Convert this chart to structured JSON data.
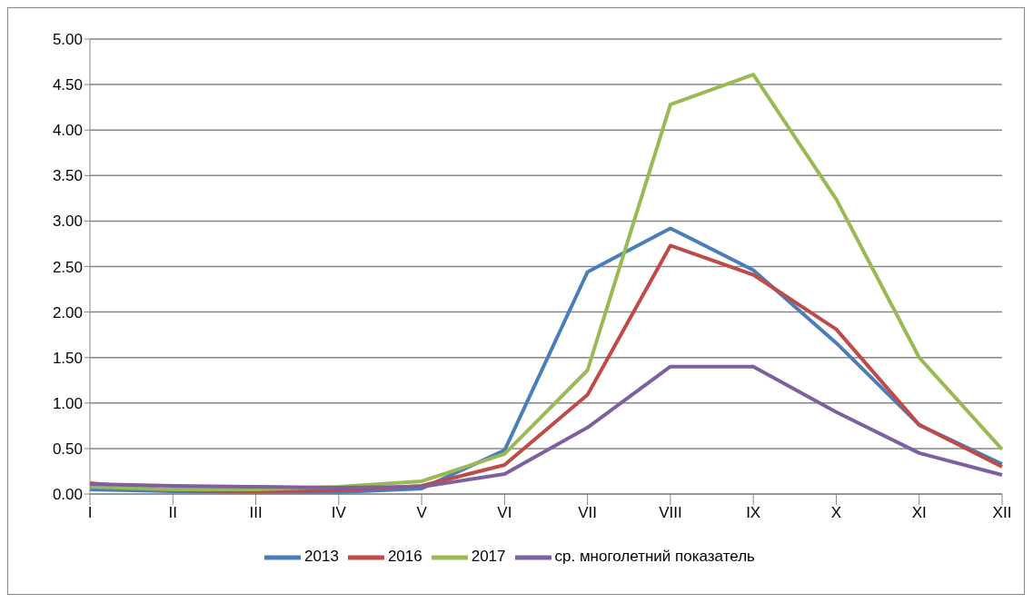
{
  "chart_data": {
    "type": "line",
    "categories": [
      "I",
      "II",
      "III",
      "IV",
      "V",
      "VI",
      "VII",
      "VIII",
      "IX",
      "X",
      "XI",
      "XII"
    ],
    "series": [
      {
        "name": "2013",
        "color": "#4a7ebb",
        "values": [
          0.05,
          0.03,
          0.02,
          0.02,
          0.06,
          0.48,
          2.44,
          2.92,
          2.46,
          1.66,
          0.76,
          0.33
        ]
      },
      {
        "name": "2016",
        "color": "#be4b48",
        "values": [
          0.12,
          0.04,
          0.03,
          0.04,
          0.09,
          0.32,
          1.09,
          2.73,
          2.41,
          1.81,
          0.76,
          0.3
        ]
      },
      {
        "name": "2017",
        "color": "#98b954",
        "values": [
          0.08,
          0.05,
          0.05,
          0.08,
          0.14,
          0.44,
          1.36,
          4.28,
          4.61,
          3.24,
          1.5,
          0.49
        ]
      },
      {
        "name": "ср. многолетний показатель",
        "color": "#7d60a0",
        "values": [
          0.11,
          0.09,
          0.08,
          0.07,
          0.08,
          0.22,
          0.73,
          1.4,
          1.4,
          0.9,
          0.45,
          0.21
        ]
      }
    ],
    "ylim": [
      0,
      5
    ],
    "yticks": [
      {
        "value": 0,
        "label": "0.00"
      },
      {
        "value": 0.5,
        "label": "0.50"
      },
      {
        "value": 1,
        "label": "1.00"
      },
      {
        "value": 1.5,
        "label": "1.50"
      },
      {
        "value": 2,
        "label": "2.00"
      },
      {
        "value": 2.5,
        "label": "2.50"
      },
      {
        "value": 3,
        "label": "3.00"
      },
      {
        "value": 3.5,
        "label": "3.50"
      },
      {
        "value": 4,
        "label": "4.00"
      },
      {
        "value": 4.5,
        "label": "4.50"
      },
      {
        "value": 5,
        "label": "5.00"
      }
    ],
    "grid": "y",
    "legend": "bottom",
    "marker": "none",
    "line_style": "solid"
  }
}
